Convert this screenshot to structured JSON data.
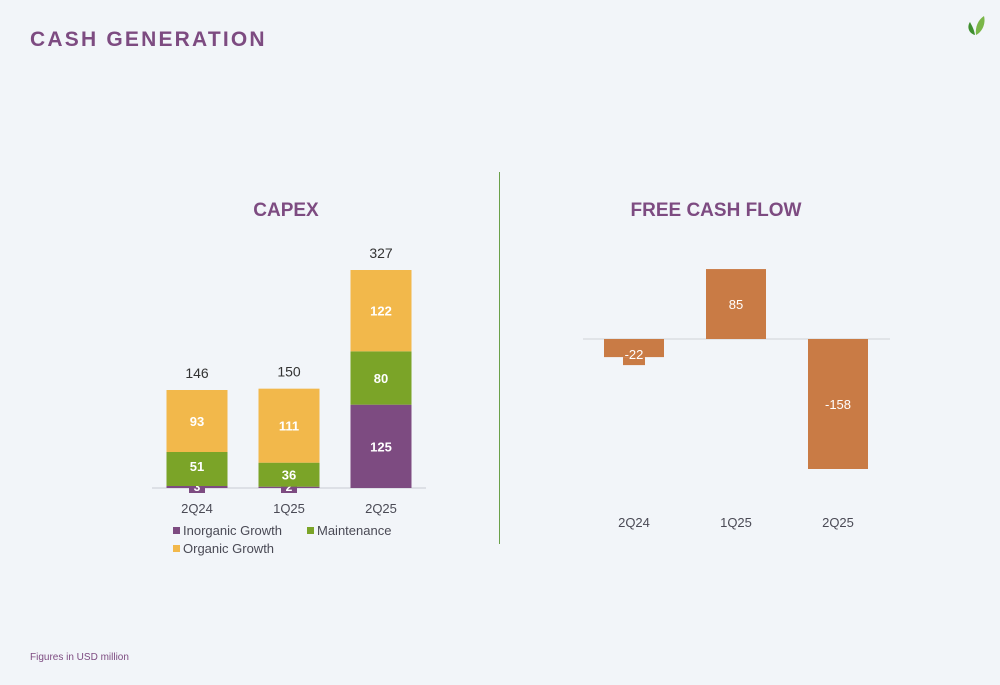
{
  "page": {
    "title": "CASH GENERATION",
    "footnote": "Figures in USD million"
  },
  "colors": {
    "accent": "#7d4b81",
    "inorganic": "#7d4b81",
    "maintenance": "#7ba428",
    "organic": "#f2b84b",
    "fcf": "#c97b45",
    "divider": "#6aa04a"
  },
  "logo": {
    "icon": "leaf-icon"
  },
  "chart_data": [
    {
      "type": "bar",
      "stacked": true,
      "title": "CAPEX",
      "categories": [
        "2Q24",
        "1Q25",
        "2Q25"
      ],
      "series": [
        {
          "name": "Inorganic Growth",
          "values": [
            3,
            2,
            125
          ],
          "color": "#7d4b81"
        },
        {
          "name": "Maintenance",
          "values": [
            51,
            36,
            80
          ],
          "color": "#7ba428"
        },
        {
          "name": "Organic Growth",
          "values": [
            93,
            111,
            122
          ],
          "color": "#f2b84b"
        }
      ],
      "totals": [
        146,
        150,
        327
      ],
      "total_labels": [
        "146",
        "150",
        "327"
      ],
      "segment_labels": [
        [
          "3",
          "51",
          "93"
        ],
        [
          "2",
          "36",
          "111"
        ],
        [
          "125",
          "80",
          "122"
        ]
      ],
      "legend": {
        "position": "bottom",
        "entries": [
          "Inorganic Growth",
          "Maintenance",
          "Organic Growth"
        ]
      },
      "grid": false,
      "ylim": [
        0,
        327
      ]
    },
    {
      "type": "bar",
      "title": "FREE CASH FLOW",
      "categories": [
        "2Q24",
        "1Q25",
        "2Q25"
      ],
      "values": [
        -22,
        85,
        -158
      ],
      "value_labels": [
        "-22",
        "85",
        "-158"
      ],
      "color": "#c97b45",
      "grid": false,
      "ylim": [
        -158,
        85
      ]
    }
  ]
}
